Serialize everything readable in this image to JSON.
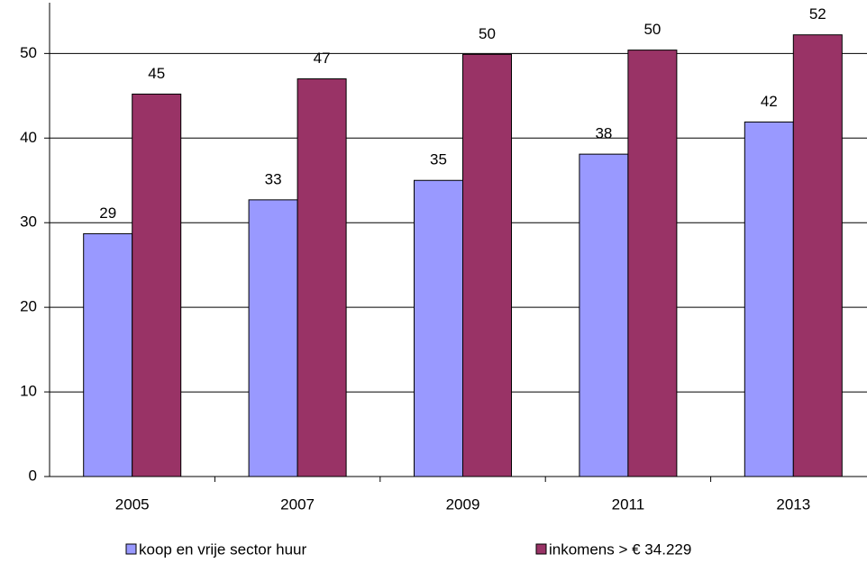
{
  "chart_data": {
    "type": "bar",
    "categories": [
      "2005",
      "2007",
      "2009",
      "2011",
      "2013"
    ],
    "series": [
      {
        "name": "koop en vrije sector huur",
        "color": "#9999ff",
        "values": [
          28.7,
          32.7,
          35,
          38.1,
          41.9
        ],
        "value_labels": [
          "29",
          "33",
          "35",
          "38",
          "42"
        ]
      },
      {
        "name": "inkomens > € 34.229",
        "color": "#993366",
        "values": [
          45.2,
          47,
          49.9,
          50.4,
          52.2
        ],
        "value_labels": [
          "45",
          "47",
          "50",
          "50",
          "52"
        ]
      }
    ],
    "ylim": [
      0,
      56
    ],
    "yticks": [
      0,
      10,
      20,
      30,
      40,
      50
    ],
    "grid": true,
    "legend": "bottom"
  }
}
